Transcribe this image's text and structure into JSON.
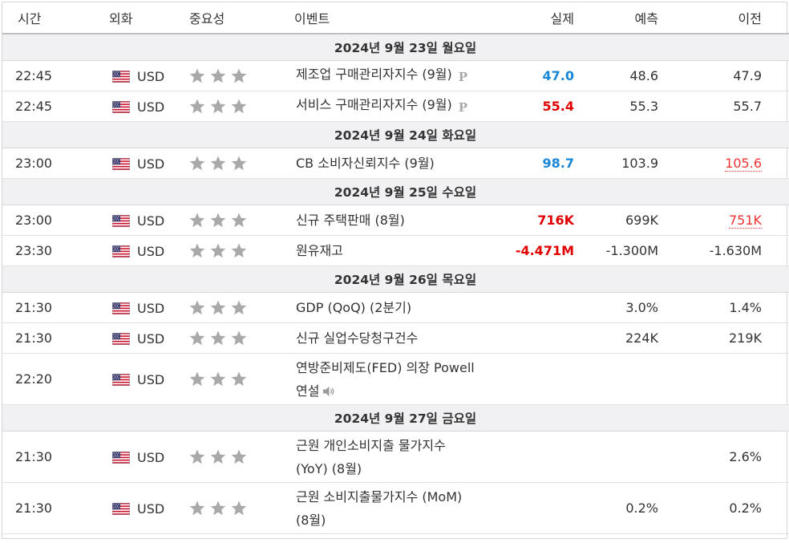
{
  "colors": {
    "better": "#1a87d6",
    "worse": "#e00000",
    "revised": "#e33333"
  },
  "header": {
    "time": "시간",
    "currency": "외화",
    "importance": "중요성",
    "event": "이벤트",
    "actual": "실제",
    "forecast": "예측",
    "previous": "이전"
  },
  "days": [
    "2024년 9월 23일 월요일",
    "2024년 9월 24일 화요일",
    "2024년 9월 25일 수요일",
    "2024년 9월 26일 목요일",
    "2024년 9월 27일 금요일"
  ],
  "rows": [
    {
      "time": "22:45",
      "currency": "USD",
      "event": "제조업 구매관리자지수 (9월)",
      "prelim": "P",
      "actual": "47.0",
      "forecast": "48.6",
      "previous": "47.9"
    },
    {
      "time": "22:45",
      "currency": "USD",
      "event": "서비스 구매관리자지수 (9월)",
      "prelim": "P",
      "actual": "55.4",
      "forecast": "55.3",
      "previous": "55.7"
    },
    {
      "time": "23:00",
      "currency": "USD",
      "event": "CB 소비자신뢰지수 (9월)",
      "actual": "98.7",
      "forecast": "103.9",
      "previous": "105.6"
    },
    {
      "time": "23:00",
      "currency": "USD",
      "event": "신규 주택판매 (8월)",
      "actual": "716K",
      "forecast": "699K",
      "previous": "751K"
    },
    {
      "time": "23:30",
      "currency": "USD",
      "event": "원유재고",
      "actual": "-4.471M",
      "forecast": "-1.300M",
      "previous": "-1.630M"
    },
    {
      "time": "21:30",
      "currency": "USD",
      "event": "GDP (QoQ) (2분기)",
      "actual": "",
      "forecast": "3.0%",
      "previous": "1.4%"
    },
    {
      "time": "21:30",
      "currency": "USD",
      "event": "신규 실업수당청구건수",
      "actual": "",
      "forecast": "224K",
      "previous": "219K"
    },
    {
      "time": "22:20",
      "currency": "USD",
      "event_line1": "연방준비제도(FED) 의장 Powell",
      "event_line2": "연설",
      "actual": "",
      "forecast": "",
      "previous": ""
    },
    {
      "time": "21:30",
      "currency": "USD",
      "event_line1": "근원 개인소비지출 물가지수",
      "event_line2": "(YoY) (8월)",
      "actual": "",
      "forecast": "",
      "previous": "2.6%"
    },
    {
      "time": "21:30",
      "currency": "USD",
      "event_line1": "근원 소비지출물가지수 (MoM)",
      "event_line2": "(8월)",
      "actual": "",
      "forecast": "0.2%",
      "previous": "0.2%"
    }
  ]
}
